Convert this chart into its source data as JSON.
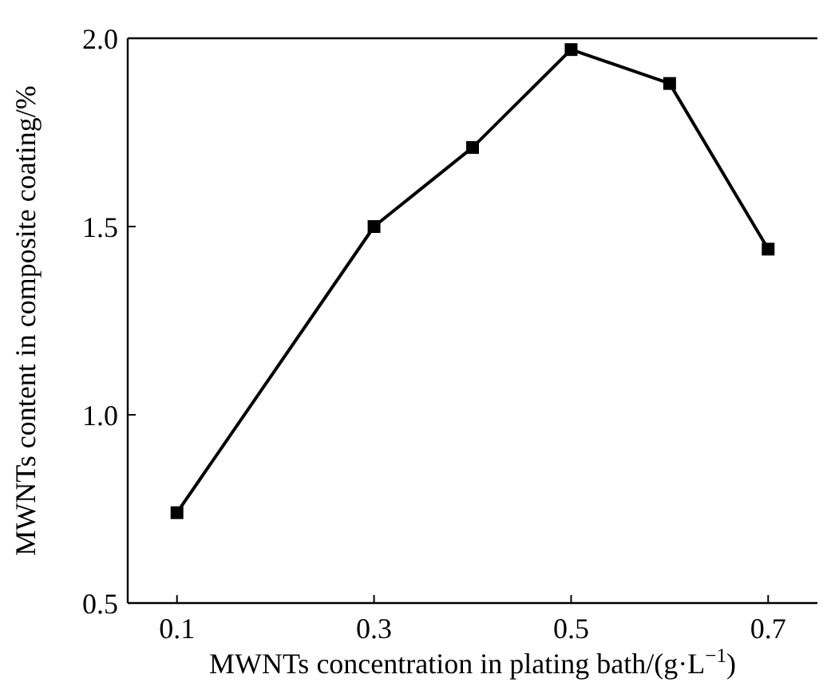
{
  "chart_data": {
    "type": "line",
    "xlabel": "MWNTs concentration in plating bath/(g·L$^{−1}$)",
    "ylabel": "MWNTs content in composite coating/%",
    "x": [
      0.1,
      0.3,
      0.4,
      0.5,
      0.6,
      0.7
    ],
    "series": [
      {
        "color": "#000000",
        "values": [
          0.74,
          1.5,
          1.71,
          1.97,
          1.88,
          1.44
        ]
      }
    ],
    "xlim": [
      0.05,
      0.75
    ],
    "xticks": [
      0.1,
      0.3,
      0.5,
      0.7
    ],
    "ylim": [
      0.5,
      2.0
    ],
    "yticks": [
      0.5,
      {
        "value": 1,
        "label": "1.0"
      },
      1.5,
      {
        "value": 2,
        "label": "2.0"
      }
    ],
    "grid": false,
    "marker": "square",
    "line_style": "solid"
  }
}
